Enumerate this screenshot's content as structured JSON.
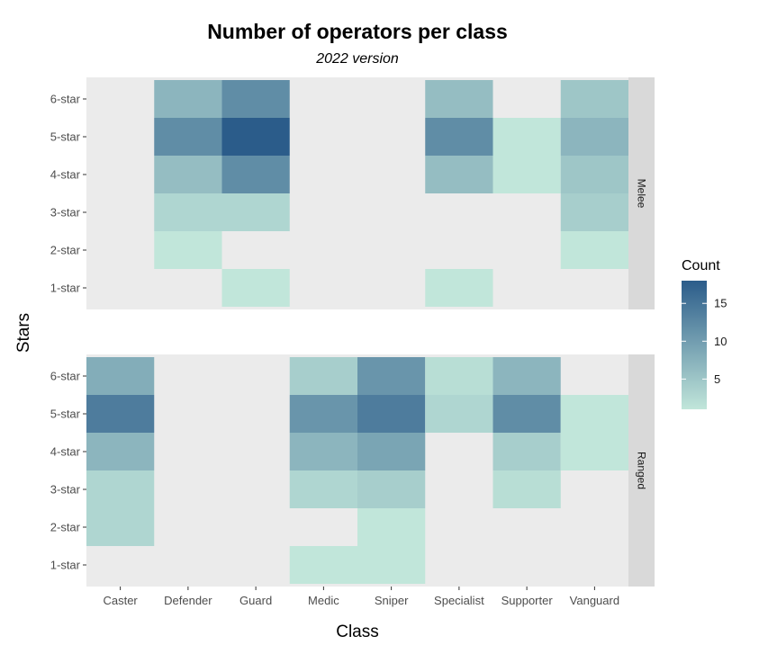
{
  "chart_data": {
    "type": "heatmap",
    "title": "Number of operators per class",
    "subtitle": "2022 version",
    "xlabel": "Class",
    "ylabel": "Stars",
    "x_categories": [
      "Caster",
      "Defender",
      "Guard",
      "Medic",
      "Sniper",
      "Specialist",
      "Supporter",
      "Vanguard"
    ],
    "y_categories": [
      "1-star",
      "2-star",
      "3-star",
      "4-star",
      "5-star",
      "6-star"
    ],
    "legend": {
      "title": "Count",
      "ticks": [
        5,
        10,
        15
      ],
      "range": [
        1,
        18
      ],
      "colors": [
        "#c1e6da",
        "#2b5c8a"
      ],
      "placement": "right"
    },
    "facets": [
      {
        "label": "Melee",
        "cells": [
          {
            "class": "Defender",
            "stars": "2-star",
            "value": 1
          },
          {
            "class": "Defender",
            "stars": "3-star",
            "value": 3
          },
          {
            "class": "Defender",
            "stars": "4-star",
            "value": 6
          },
          {
            "class": "Defender",
            "stars": "5-star",
            "value": 12
          },
          {
            "class": "Defender",
            "stars": "6-star",
            "value": 7
          },
          {
            "class": "Guard",
            "stars": "1-star",
            "value": 1
          },
          {
            "class": "Guard",
            "stars": "3-star",
            "value": 3
          },
          {
            "class": "Guard",
            "stars": "4-star",
            "value": 12
          },
          {
            "class": "Guard",
            "stars": "5-star",
            "value": 18
          },
          {
            "class": "Guard",
            "stars": "6-star",
            "value": 12
          },
          {
            "class": "Specialist",
            "stars": "1-star",
            "value": 1
          },
          {
            "class": "Specialist",
            "stars": "4-star",
            "value": 6
          },
          {
            "class": "Specialist",
            "stars": "5-star",
            "value": 12
          },
          {
            "class": "Specialist",
            "stars": "6-star",
            "value": 6
          },
          {
            "class": "Supporter",
            "stars": "4-star",
            "value": 1
          },
          {
            "class": "Supporter",
            "stars": "5-star",
            "value": 1
          },
          {
            "class": "Vanguard",
            "stars": "2-star",
            "value": 1
          },
          {
            "class": "Vanguard",
            "stars": "3-star",
            "value": 4
          },
          {
            "class": "Vanguard",
            "stars": "4-star",
            "value": 5
          },
          {
            "class": "Vanguard",
            "stars": "5-star",
            "value": 7
          },
          {
            "class": "Vanguard",
            "stars": "6-star",
            "value": 5
          }
        ]
      },
      {
        "label": "Ranged",
        "cells": [
          {
            "class": "Caster",
            "stars": "2-star",
            "value": 3
          },
          {
            "class": "Caster",
            "stars": "3-star",
            "value": 3
          },
          {
            "class": "Caster",
            "stars": "4-star",
            "value": 7
          },
          {
            "class": "Caster",
            "stars": "5-star",
            "value": 14
          },
          {
            "class": "Caster",
            "stars": "6-star",
            "value": 8
          },
          {
            "class": "Medic",
            "stars": "1-star",
            "value": 1
          },
          {
            "class": "Medic",
            "stars": "3-star",
            "value": 3
          },
          {
            "class": "Medic",
            "stars": "4-star",
            "value": 7
          },
          {
            "class": "Medic",
            "stars": "5-star",
            "value": 11
          },
          {
            "class": "Medic",
            "stars": "6-star",
            "value": 4
          },
          {
            "class": "Sniper",
            "stars": "1-star",
            "value": 1
          },
          {
            "class": "Sniper",
            "stars": "2-star",
            "value": 1
          },
          {
            "class": "Sniper",
            "stars": "3-star",
            "value": 4
          },
          {
            "class": "Sniper",
            "stars": "4-star",
            "value": 9
          },
          {
            "class": "Sniper",
            "stars": "5-star",
            "value": 14
          },
          {
            "class": "Sniper",
            "stars": "6-star",
            "value": 11
          },
          {
            "class": "Specialist",
            "stars": "5-star",
            "value": 3
          },
          {
            "class": "Specialist",
            "stars": "6-star",
            "value": 2
          },
          {
            "class": "Supporter",
            "stars": "3-star",
            "value": 2
          },
          {
            "class": "Supporter",
            "stars": "4-star",
            "value": 4
          },
          {
            "class": "Supporter",
            "stars": "5-star",
            "value": 12
          },
          {
            "class": "Supporter",
            "stars": "6-star",
            "value": 7
          },
          {
            "class": "Vanguard",
            "stars": "4-star",
            "value": 1
          },
          {
            "class": "Vanguard",
            "stars": "5-star",
            "value": 1
          }
        ]
      }
    ]
  }
}
